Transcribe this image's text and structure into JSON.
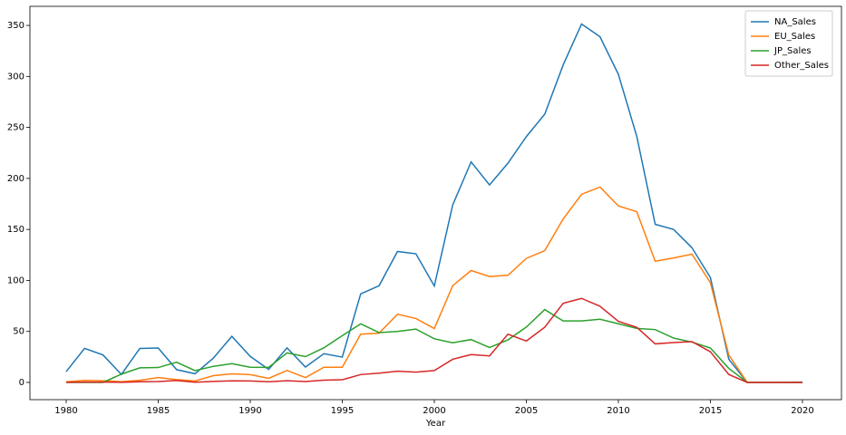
{
  "chart_data": {
    "type": "line",
    "x_label": "Year",
    "x": [
      1980,
      1981,
      1982,
      1983,
      1984,
      1985,
      1986,
      1987,
      1988,
      1989,
      1990,
      1991,
      1992,
      1993,
      1994,
      1995,
      1996,
      1997,
      1998,
      1999,
      2000,
      2001,
      2002,
      2003,
      2004,
      2005,
      2006,
      2007,
      2008,
      2009,
      2010,
      2011,
      2012,
      2013,
      2014,
      2015,
      2016,
      2017,
      2020
    ],
    "series": [
      {
        "name": "NA_Sales",
        "color": "#1f77b4",
        "values": [
          10.6,
          33.4,
          26.9,
          7.8,
          33.3,
          33.7,
          12.5,
          8.5,
          23.9,
          45.2,
          25.5,
          12.8,
          33.9,
          15.1,
          28.2,
          24.8,
          86.8,
          94.8,
          128.4,
          126.1,
          94.5,
          174,
          216.2,
          193.6,
          215,
          241,
          263,
          311.2,
          351.4,
          338.9,
          302,
          241.2,
          155,
          150,
          132,
          102.8,
          22.7,
          0,
          0.3
        ]
      },
      {
        "name": "EU_Sales",
        "color": "#ff7f0e",
        "values": [
          0.7,
          2,
          1.7,
          0.8,
          2.1,
          4.7,
          2.8,
          1.4,
          6.6,
          8.4,
          7.6,
          4,
          11.7,
          4.7,
          14.9,
          14.9,
          47.3,
          48.3,
          66.9,
          62.7,
          52.8,
          94.9,
          109.7,
          103.8,
          105,
          121.6,
          129.2,
          160.2,
          184.4,
          191.6,
          173,
          167.4,
          118.8,
          122,
          125.7,
          97.7,
          26.8,
          0,
          0
        ]
      },
      {
        "name": "JP_Sales",
        "color": "#2ca02c",
        "values": [
          0,
          0,
          0,
          8.1,
          14.3,
          14.6,
          19.8,
          11.6,
          15.8,
          18.4,
          14.9,
          14.8,
          28.9,
          25.3,
          33.9,
          45.8,
          57.4,
          48.9,
          50,
          52.3,
          42.8,
          38.9,
          42,
          34.2,
          41.7,
          54.3,
          71.4,
          60.3,
          60.3,
          61.9,
          57.5,
          53,
          51.8,
          43.5,
          39.5,
          33.7,
          13.7,
          0.1,
          0
        ]
      },
      {
        "name": "Other_Sales",
        "color": "#d62728",
        "values": [
          0.1,
          0.3,
          0.3,
          0.1,
          0.7,
          0.9,
          1.9,
          0.2,
          1,
          1.5,
          1.4,
          0.7,
          1.7,
          0.9,
          2.2,
          2.6,
          7.7,
          9.1,
          11,
          10.1,
          11.6,
          22.7,
          27.3,
          26,
          47.3,
          40.6,
          54.1,
          77.6,
          82.4,
          74.7,
          59.9,
          54,
          37.8,
          39.1,
          40,
          30,
          7.8,
          0,
          0
        ]
      }
    ],
    "xlim": [
      1978.03,
      2022.12
    ],
    "ylim": [
      -16.9,
      368.7
    ],
    "xticks": [
      1980,
      1985,
      1990,
      1995,
      2000,
      2005,
      2010,
      2015,
      2020
    ],
    "yticks": [
      0,
      50,
      100,
      150,
      200,
      250,
      300,
      350
    ],
    "legend": "upper right",
    "grid": false
  }
}
